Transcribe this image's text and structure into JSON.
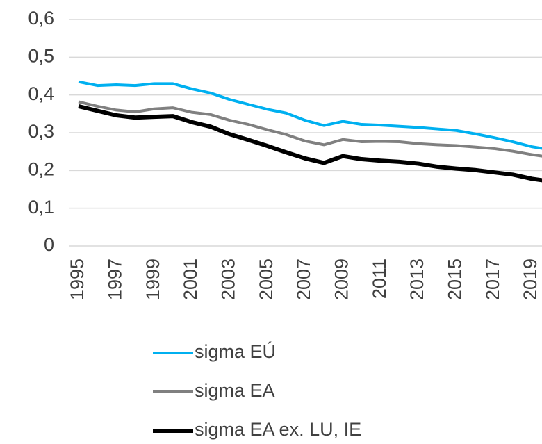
{
  "chart_data": {
    "type": "line",
    "categories": [
      "1995",
      null,
      "1997",
      null,
      "1999",
      null,
      "2001",
      null,
      "2003",
      null,
      "2005",
      null,
      "2007",
      null,
      "2009",
      null,
      "2011",
      null,
      "2013",
      null,
      "2015",
      null,
      "2017",
      null,
      "2019",
      null
    ],
    "series": [
      {
        "name": "sigma EÚ",
        "color": "#00b0f0",
        "values": [
          0.435,
          0.425,
          0.427,
          0.425,
          0.43,
          0.43,
          0.416,
          0.405,
          0.388,
          0.375,
          0.362,
          0.352,
          0.333,
          0.319,
          0.33,
          0.322,
          0.32,
          0.317,
          0.314,
          0.31,
          0.306,
          0.297,
          0.287,
          0.276,
          0.263,
          0.255
        ]
      },
      {
        "name": "sigma EA",
        "color": "#808080",
        "values": [
          0.382,
          0.37,
          0.36,
          0.355,
          0.363,
          0.366,
          0.354,
          0.348,
          0.333,
          0.322,
          0.308,
          0.295,
          0.278,
          0.268,
          0.282,
          0.276,
          0.277,
          0.276,
          0.271,
          0.268,
          0.266,
          0.262,
          0.258,
          0.251,
          0.242,
          0.235
        ]
      },
      {
        "name": "sigma EA ex. LU, IE",
        "color": "#000000",
        "values": [
          0.37,
          0.358,
          0.346,
          0.34,
          0.342,
          0.344,
          0.328,
          0.316,
          0.296,
          0.281,
          0.265,
          0.248,
          0.232,
          0.22,
          0.238,
          0.23,
          0.226,
          0.223,
          0.218,
          0.21,
          0.205,
          0.201,
          0.195,
          0.189,
          0.178,
          0.171
        ]
      }
    ],
    "ylim": [
      0,
      0.6
    ],
    "yticks": [
      0,
      {
        "value": 0.1,
        "label": "0,1"
      },
      {
        "value": 0.2,
        "label": "0,2"
      },
      {
        "value": 0.3,
        "label": "0,3"
      },
      {
        "value": 0.4,
        "label": "0,4"
      },
      {
        "value": 0.5,
        "label": "0,5"
      },
      {
        "value": 0.6,
        "label": "0,6"
      }
    ],
    "grid": true,
    "legend": "bottom"
  }
}
